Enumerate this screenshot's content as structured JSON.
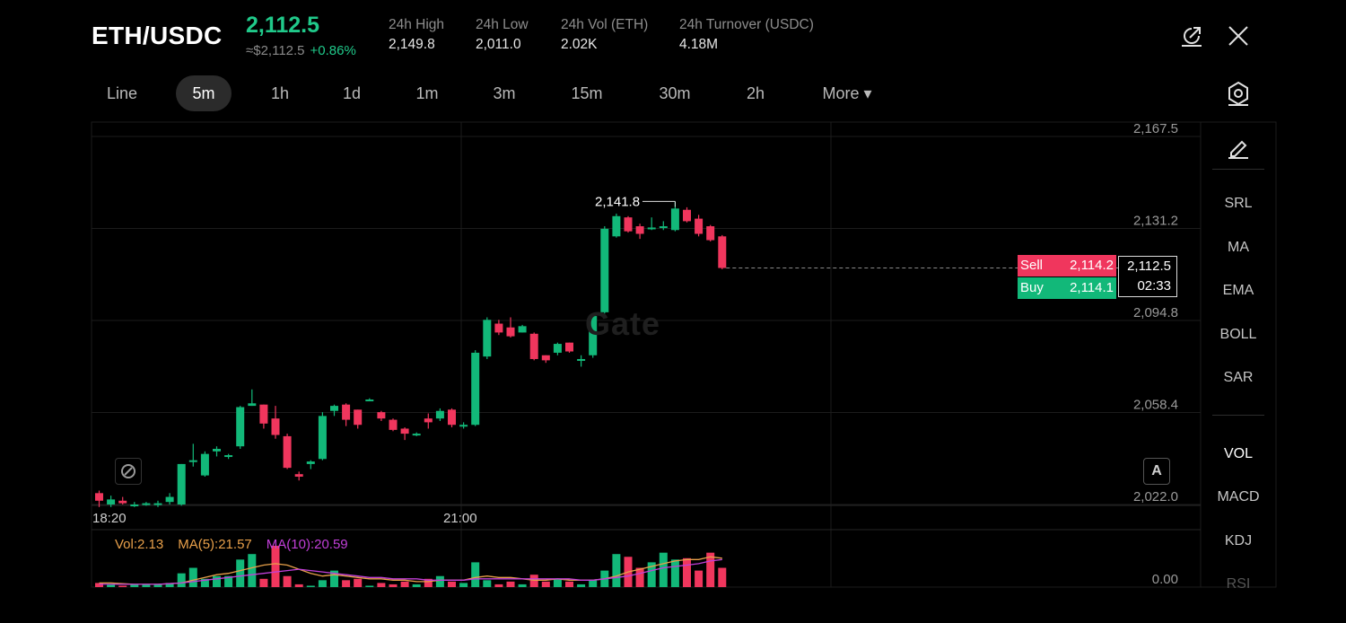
{
  "header": {
    "pair": "ETH/USDC",
    "last_price": "2,112.5",
    "approx_price": "≈$2,112.5",
    "change": "+0.86%",
    "stats": [
      {
        "label": "24h  High",
        "value": "2,149.8"
      },
      {
        "label": "24h  Low",
        "value": "2,011.0"
      },
      {
        "label": "24h  Vol (ETH)",
        "value": "2.02K"
      },
      {
        "label": "24h  Turnover (USDC)",
        "value": "4.18M"
      }
    ],
    "icons": [
      "share-icon",
      "close-icon"
    ]
  },
  "timeframes": {
    "items": [
      "Line",
      "5m",
      "1h",
      "1d",
      "1m",
      "3m",
      "15m",
      "30m",
      "2h",
      "More ▾"
    ],
    "active": "5m"
  },
  "indicators": {
    "main": [
      "SRL",
      "MA",
      "EMA",
      "BOLL",
      "SAR"
    ],
    "sub": [
      "VOL",
      "MACD",
      "KDJ",
      "RSI"
    ],
    "active_sub": "VOL"
  },
  "order_book": {
    "sell_label": "Sell",
    "sell_price": "2,114.2",
    "buy_label": "Buy",
    "buy_price": "2,114.1",
    "current_price": "2,112.5",
    "countdown": "02:33"
  },
  "volume_legend": {
    "vol": "Vol:2.13",
    "ma5": "MA(5):21.57",
    "ma10": "MA(10):20.59"
  },
  "watermark": "Gate",
  "autoscale_label": "A",
  "colors": {
    "up": "#12b879",
    "down": "#f0365d",
    "accent": "#20c98a",
    "ma5": "#e8a04a",
    "ma10": "#c13fd8",
    "grid": "#1c1c1c"
  },
  "chart_data": {
    "type": "candlestick",
    "x_ticks": [
      "18:20",
      "21:00"
    ],
    "y_ticks": [
      "2,167.5",
      "2,131.2",
      "2,094.8",
      "2,058.4",
      "2,022.0"
    ],
    "y_range": [
      2022.0,
      2167.5
    ],
    "vol_axis_label": "0.00",
    "high_label": "2,141.8",
    "candles": [
      {
        "o": 2026.5,
        "h": 2027.5,
        "l": 2021.0,
        "c": 2023.5
      },
      {
        "o": 2022.0,
        "h": 2025.5,
        "l": 2021.0,
        "c": 2024.0
      },
      {
        "o": 2023.5,
        "h": 2025.0,
        "l": 2022.0,
        "c": 2022.5
      },
      {
        "o": 2022.0,
        "h": 2023.0,
        "l": 2021.0,
        "c": 2022.0
      },
      {
        "o": 2022.0,
        "h": 2023.0,
        "l": 2021.5,
        "c": 2022.5
      },
      {
        "o": 2022.0,
        "h": 2023.5,
        "l": 2021.0,
        "c": 2022.5
      },
      {
        "o": 2023.0,
        "h": 2026.5,
        "l": 2022.0,
        "c": 2025.0
      },
      {
        "o": 2022.0,
        "h": 2038.0,
        "l": 2021.5,
        "c": 2038.0
      },
      {
        "o": 2039.5,
        "h": 2046.0,
        "l": 2037.0,
        "c": 2039.5
      },
      {
        "o": 2033.5,
        "h": 2043.0,
        "l": 2033.0,
        "c": 2042.0
      },
      {
        "o": 2043.0,
        "h": 2045.0,
        "l": 2041.0,
        "c": 2044.0
      },
      {
        "o": 2041.5,
        "h": 2042.0,
        "l": 2040.0,
        "c": 2041.5
      },
      {
        "o": 2045.0,
        "h": 2061.0,
        "l": 2044.0,
        "c": 2060.5
      },
      {
        "o": 2061.0,
        "h": 2067.5,
        "l": 2061.0,
        "c": 2062.0
      },
      {
        "o": 2061.5,
        "h": 2061.5,
        "l": 2052.0,
        "c": 2054.0
      },
      {
        "o": 2056.0,
        "h": 2061.0,
        "l": 2048.0,
        "c": 2049.5
      },
      {
        "o": 2049.0,
        "h": 2050.0,
        "l": 2036.0,
        "c": 2036.5
      },
      {
        "o": 2034.0,
        "h": 2035.0,
        "l": 2031.5,
        "c": 2033.0
      },
      {
        "o": 2038.0,
        "h": 2039.5,
        "l": 2036.0,
        "c": 2039.0
      },
      {
        "o": 2040.0,
        "h": 2058.5,
        "l": 2039.5,
        "c": 2057.0
      },
      {
        "o": 2059.0,
        "h": 2061.5,
        "l": 2057.0,
        "c": 2061.0
      },
      {
        "o": 2061.5,
        "h": 2062.0,
        "l": 2053.0,
        "c": 2055.5
      },
      {
        "o": 2059.5,
        "h": 2059.5,
        "l": 2052.0,
        "c": 2053.5
      },
      {
        "o": 2063.5,
        "h": 2064.0,
        "l": 2063.0,
        "c": 2063.5
      },
      {
        "o": 2058.5,
        "h": 2059.0,
        "l": 2055.0,
        "c": 2056.0
      },
      {
        "o": 2055.5,
        "h": 2056.0,
        "l": 2051.0,
        "c": 2051.5
      },
      {
        "o": 2052.0,
        "h": 2052.5,
        "l": 2047.5,
        "c": 2050.0
      },
      {
        "o": 2050.0,
        "h": 2050.5,
        "l": 2049.0,
        "c": 2050.0
      },
      {
        "o": 2056.0,
        "h": 2058.0,
        "l": 2052.0,
        "c": 2054.5
      },
      {
        "o": 2056.0,
        "h": 2060.0,
        "l": 2055.0,
        "c": 2059.0
      },
      {
        "o": 2059.5,
        "h": 2060.0,
        "l": 2052.5,
        "c": 2053.5
      },
      {
        "o": 2053.0,
        "h": 2054.5,
        "l": 2052.0,
        "c": 2053.5
      },
      {
        "o": 2053.5,
        "h": 2083.0,
        "l": 2053.0,
        "c": 2082.0
      },
      {
        "o": 2080.5,
        "h": 2096.0,
        "l": 2079.5,
        "c": 2095.0
      },
      {
        "o": 2093.5,
        "h": 2095.0,
        "l": 2089.0,
        "c": 2090.0
      },
      {
        "o": 2092.0,
        "h": 2096.0,
        "l": 2088.0,
        "c": 2088.5
      },
      {
        "o": 2090.0,
        "h": 2093.0,
        "l": 2090.0,
        "c": 2092.5
      },
      {
        "o": 2089.5,
        "h": 2090.0,
        "l": 2079.0,
        "c": 2079.5
      },
      {
        "o": 2081.0,
        "h": 2081.0,
        "l": 2078.0,
        "c": 2079.0
      },
      {
        "o": 2082.0,
        "h": 2086.0,
        "l": 2081.0,
        "c": 2085.5
      },
      {
        "o": 2086.0,
        "h": 2086.0,
        "l": 2082.0,
        "c": 2082.5
      },
      {
        "o": 2079.5,
        "h": 2081.0,
        "l": 2076.5,
        "c": 2079.5
      },
      {
        "o": 2081.0,
        "h": 2097.0,
        "l": 2080.0,
        "c": 2096.5
      },
      {
        "o": 2098.0,
        "h": 2132.0,
        "l": 2097.5,
        "c": 2131.0
      },
      {
        "o": 2128.0,
        "h": 2137.0,
        "l": 2127.5,
        "c": 2136.0
      },
      {
        "o": 2135.5,
        "h": 2136.0,
        "l": 2129.5,
        "c": 2130.0
      },
      {
        "o": 2132.0,
        "h": 2133.0,
        "l": 2127.0,
        "c": 2129.0
      },
      {
        "o": 2131.0,
        "h": 2135.5,
        "l": 2130.5,
        "c": 2131.5
      },
      {
        "o": 2132.0,
        "h": 2134.0,
        "l": 2130.5,
        "c": 2132.0
      },
      {
        "o": 2130.5,
        "h": 2141.8,
        "l": 2130.0,
        "c": 2139.0
      },
      {
        "o": 2138.5,
        "h": 2139.5,
        "l": 2133.5,
        "c": 2134.0
      },
      {
        "o": 2135.0,
        "h": 2136.5,
        "l": 2128.0,
        "c": 2129.0
      },
      {
        "o": 2132.0,
        "h": 2132.5,
        "l": 2126.0,
        "c": 2126.5
      },
      {
        "o": 2128.0,
        "h": 2128.5,
        "l": 2115.0,
        "c": 2115.5
      }
    ],
    "volumes": [
      3,
      2,
      1,
      2,
      2,
      2,
      3,
      10,
      14,
      6,
      8,
      8,
      20,
      24,
      6,
      30,
      8,
      2,
      1,
      5,
      12,
      5,
      6,
      1,
      3,
      2,
      4,
      2,
      6,
      8,
      4,
      3,
      18,
      5,
      2,
      4,
      2,
      9,
      4,
      6,
      4,
      2,
      5,
      12,
      24,
      22,
      14,
      18,
      25,
      20,
      21,
      12,
      25,
      14
    ],
    "ma5": [
      3,
      3,
      2.5,
      2,
      2,
      2,
      2.5,
      3,
      5,
      7,
      9,
      10,
      12,
      14,
      16,
      17,
      16,
      13,
      10,
      8,
      9,
      8,
      7,
      6,
      6,
      5,
      5,
      4,
      4,
      5,
      5,
      5,
      7,
      8,
      7,
      7,
      6,
      5,
      5,
      6,
      5,
      5,
      5,
      6,
      8,
      11,
      13,
      15,
      17,
      19,
      20,
      20,
      22,
      21
    ],
    "ma10": [
      2,
      2,
      2,
      2,
      2,
      2,
      2.5,
      3,
      4,
      5,
      6,
      7,
      8,
      9,
      10,
      11,
      12,
      13,
      12,
      11,
      10,
      9,
      8,
      7,
      7,
      6,
      6,
      6,
      5,
      5,
      5,
      5,
      6,
      6,
      6,
      6,
      6,
      6,
      6,
      6,
      6,
      5,
      5,
      6,
      7,
      8,
      10,
      12,
      14,
      15,
      16,
      17,
      19,
      20
    ]
  }
}
